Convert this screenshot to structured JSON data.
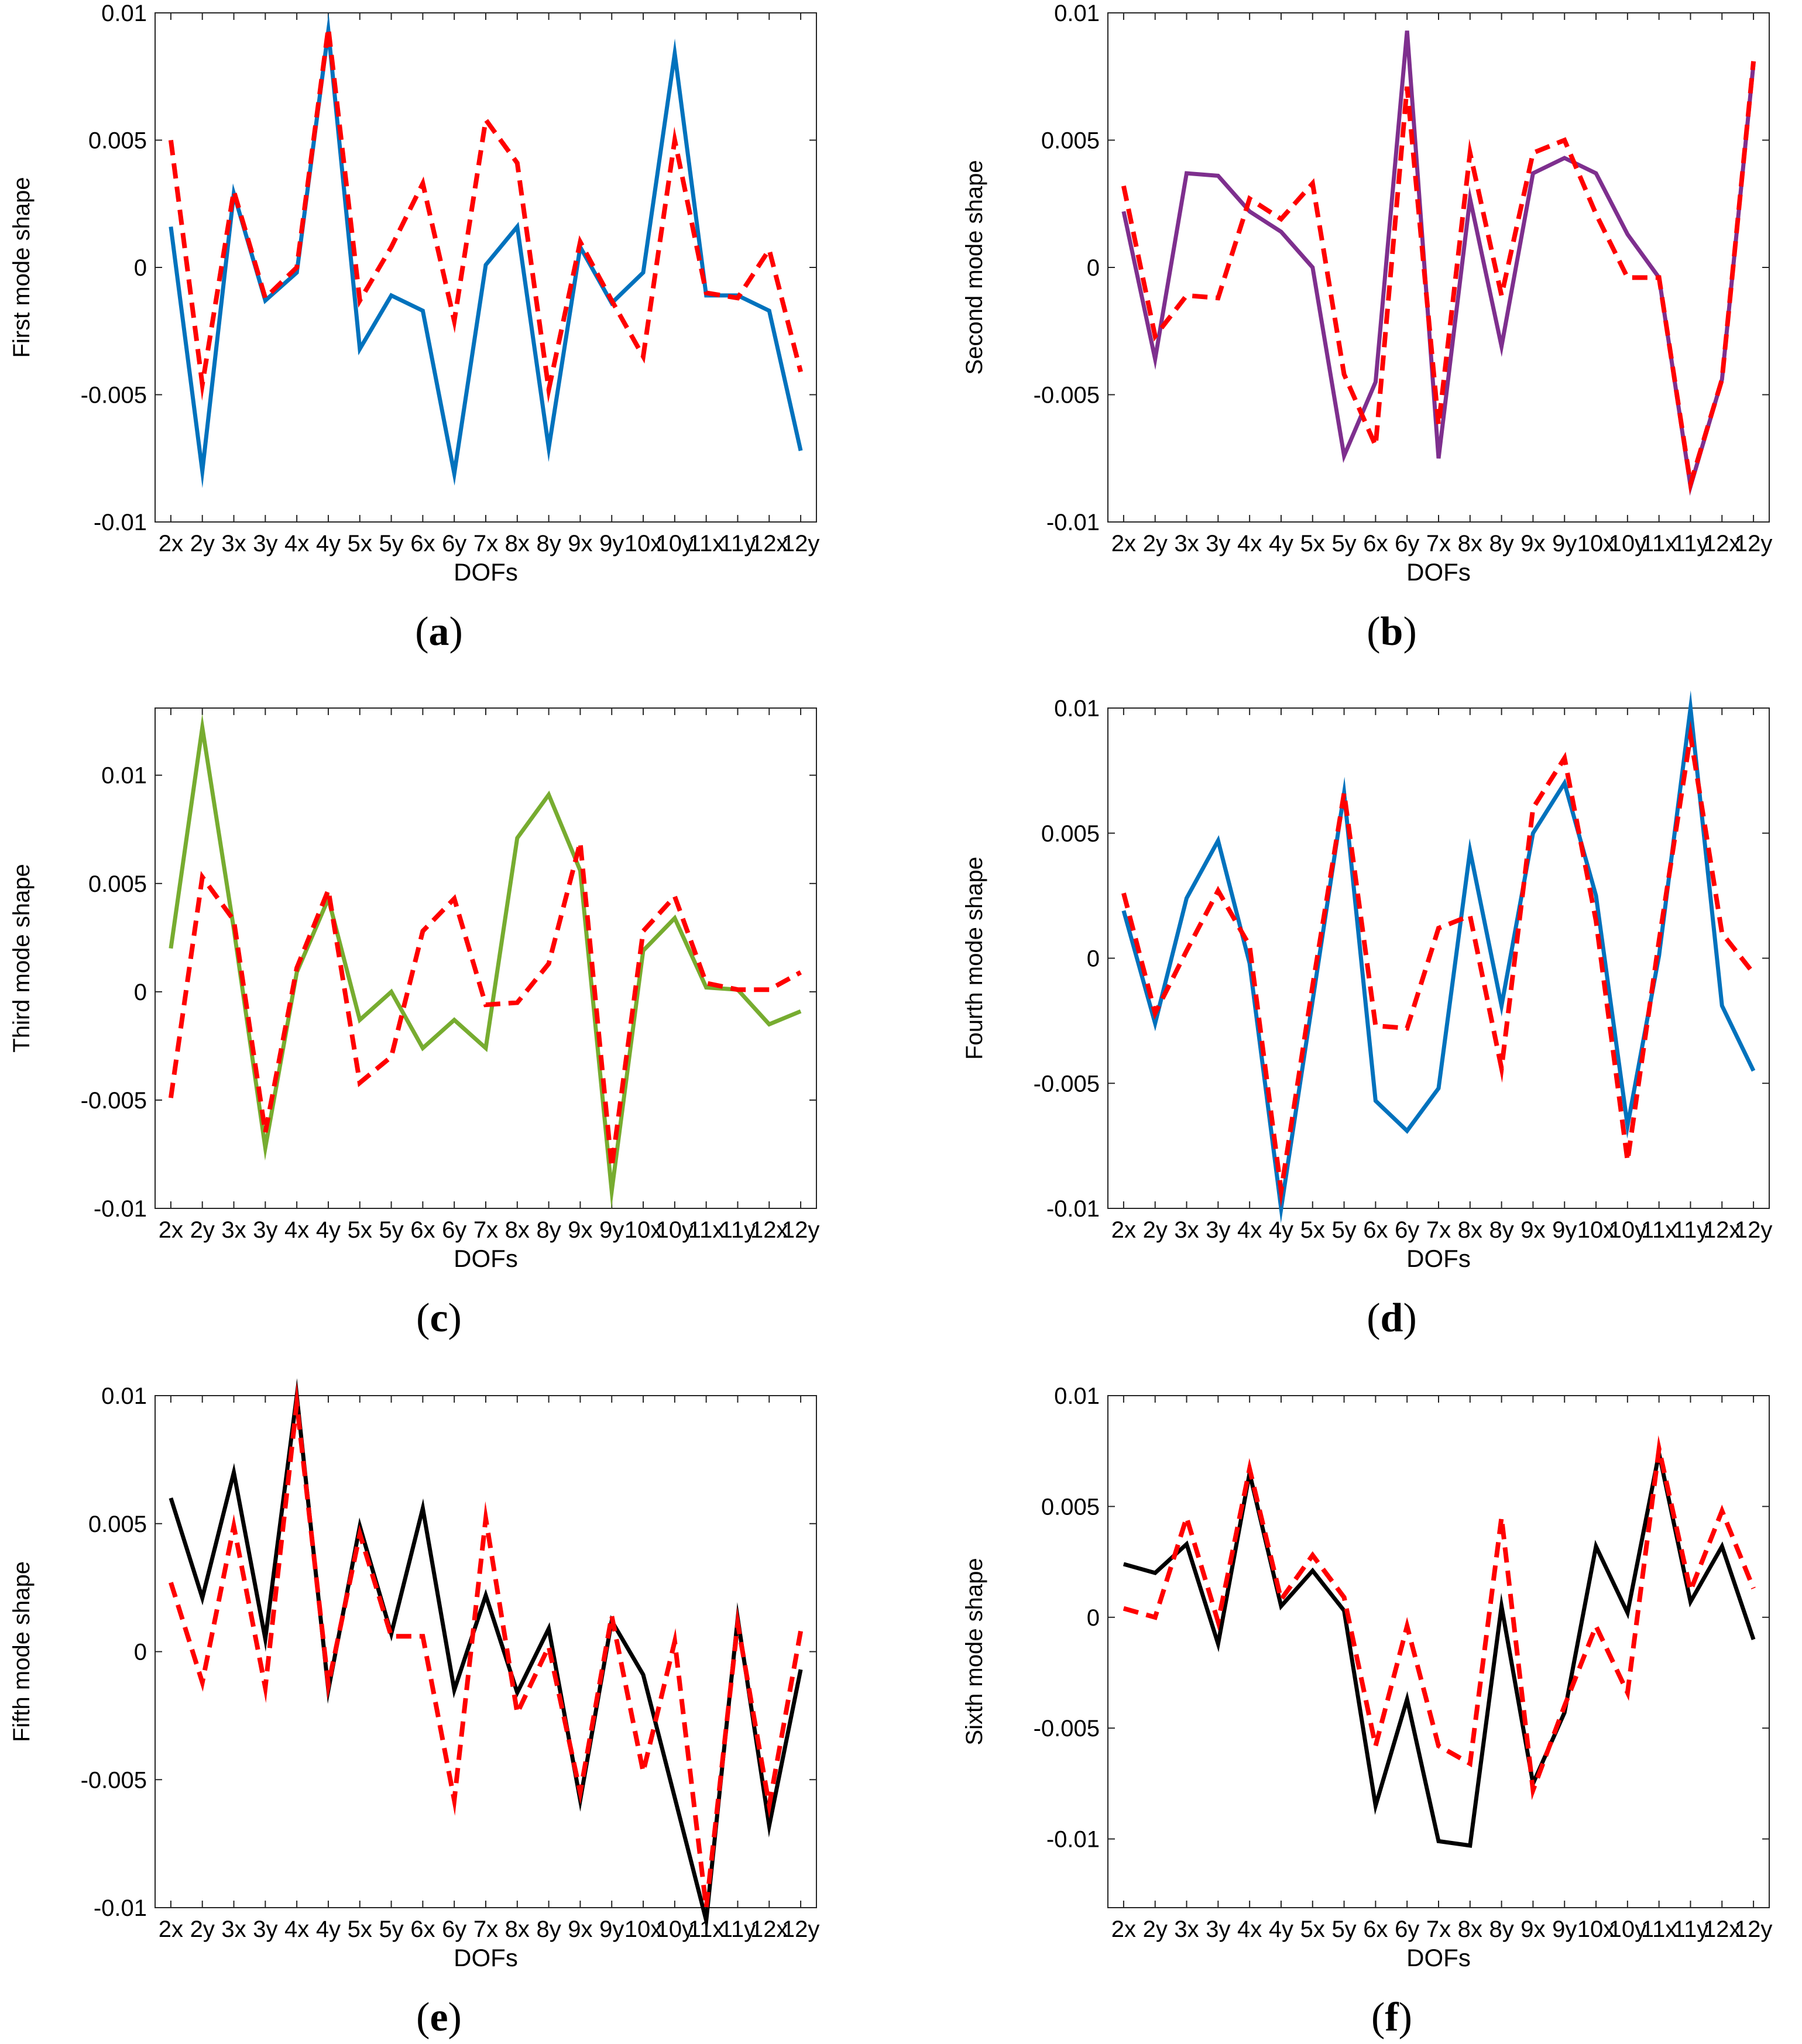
{
  "colors": {
    "prediction": "#ff0000",
    "blue": "#0072bd",
    "purple": "#7e2f8e",
    "green": "#77ac30",
    "black": "#000000"
  },
  "chart_data": [
    {
      "type": "line",
      "caption": "a",
      "ylabel": "First mode shape",
      "xlabel": "DOFs",
      "ylim": [
        -0.01,
        0.01
      ],
      "yticks": [
        -0.01,
        -0.005,
        0,
        0.005,
        0.01
      ],
      "ytick_labels": [
        "-0.01",
        "-0.005",
        "0",
        "0.005",
        "0.01"
      ],
      "categories": [
        "2x",
        "2y",
        "3x",
        "3y",
        "4x",
        "4y",
        "5x",
        "5y",
        "6x",
        "6y",
        "7x",
        "8x",
        "8y",
        "9x",
        "9y",
        "10x",
        "10y",
        "11x",
        "11y",
        "12x",
        "12y"
      ],
      "series": [
        {
          "color": "#0072bd",
          "style": "solid",
          "values": [
            0.0016,
            -0.008,
            0.0029,
            -0.0013,
            -0.0002,
            0.0093,
            -0.0032,
            -0.0011,
            -0.0017,
            -0.0081,
            0.0001,
            0.0016,
            -0.0071,
            0.0008,
            -0.0014,
            -0.0002,
            0.0084,
            -0.0011,
            -0.0011,
            -0.0017,
            -0.0072
          ]
        },
        {
          "color": "#ff0000",
          "style": "dashed",
          "values": [
            0.005,
            -0.0046,
            0.003,
            -0.0012,
            0.0,
            0.0094,
            -0.0013,
            0.0008,
            0.0033,
            -0.0021,
            0.0058,
            0.0041,
            -0.0048,
            0.001,
            -0.0013,
            -0.0035,
            0.005,
            -0.001,
            -0.0012,
            0.0007,
            -0.0041
          ]
        }
      ]
    },
    {
      "type": "line",
      "caption": "b",
      "ylabel": "Second mode shape",
      "xlabel": "DOFs",
      "ylim": [
        -0.01,
        0.01
      ],
      "yticks": [
        -0.01,
        -0.005,
        0,
        0.005,
        0.01
      ],
      "ytick_labels": [
        "-0.01",
        "-0.005",
        "0",
        "0.005",
        "0.01"
      ],
      "categories": [
        "2x",
        "2y",
        "3x",
        "3y",
        "4x",
        "4y",
        "5x",
        "5y",
        "6x",
        "6y",
        "7x",
        "8x",
        "8y",
        "9x",
        "9y",
        "10x",
        "10y",
        "11x",
        "11y",
        "12x",
        "12y"
      ],
      "series": [
        {
          "color": "#7e2f8e",
          "style": "solid",
          "values": [
            0.0022,
            -0.0036,
            0.0037,
            0.0036,
            0.0022,
            0.0014,
            0.0,
            -0.0074,
            -0.0045,
            0.0093,
            -0.0075,
            0.0027,
            -0.0031,
            0.0037,
            0.0043,
            0.0037,
            0.0013,
            -0.0004,
            -0.0086,
            -0.0044,
            0.008
          ]
        },
        {
          "color": "#ff0000",
          "style": "dashed",
          "values": [
            0.0032,
            -0.0027,
            -0.0011,
            -0.0012,
            0.0027,
            0.0019,
            0.0033,
            -0.0042,
            -0.007,
            0.0071,
            -0.0062,
            0.0045,
            -0.0011,
            0.0045,
            0.005,
            0.0021,
            -0.0004,
            -0.0004,
            -0.0085,
            -0.0044,
            0.0081
          ]
        }
      ]
    },
    {
      "type": "line",
      "caption": "c",
      "ylabel": "Third mode shape",
      "xlabel": "DOFs",
      "ylim": [
        -0.01,
        0.0131
      ],
      "yticks": [
        -0.01,
        -0.005,
        0,
        0.005,
        0.01
      ],
      "ytick_labels": [
        "-0.01",
        "-0.005",
        "0",
        "0.005",
        "0.01"
      ],
      "categories": [
        "2x",
        "2y",
        "3x",
        "3y",
        "4x",
        "4y",
        "5x",
        "5y",
        "6x",
        "6y",
        "7x",
        "8x",
        "8y",
        "9x",
        "9y",
        "10x",
        "10y",
        "11x",
        "11y",
        "12x",
        "12y"
      ],
      "series": [
        {
          "color": "#77ac30",
          "style": "solid",
          "values": [
            0.002,
            0.0122,
            0.0029,
            -0.0072,
            0.0009,
            0.0043,
            -0.0013,
            0.0,
            -0.0026,
            -0.0013,
            -0.0026,
            0.0071,
            0.0091,
            0.0056,
            -0.0092,
            0.0019,
            0.0034,
            0.0002,
            0.0001,
            -0.0015,
            -0.0009
          ]
        },
        {
          "color": "#ff0000",
          "style": "dashed",
          "values": [
            -0.0049,
            0.0053,
            0.0033,
            -0.0065,
            0.0011,
            0.0047,
            -0.0042,
            -0.003,
            0.0028,
            0.0043,
            -0.0006,
            -0.0005,
            0.0013,
            0.0069,
            -0.0081,
            0.0028,
            0.0044,
            0.0004,
            0.0001,
            0.0001,
            0.0009
          ]
        }
      ]
    },
    {
      "type": "line",
      "caption": "d",
      "ylabel": "Fourth mode shape",
      "xlabel": "DOFs",
      "ylim": [
        -0.01,
        0.01
      ],
      "yticks": [
        -0.01,
        -0.005,
        0,
        0.005,
        0.01
      ],
      "ytick_labels": [
        "-0.01",
        "-0.005",
        "0",
        "0.005",
        "0.01"
      ],
      "categories": [
        "2x",
        "2y",
        "3x",
        "3y",
        "4x",
        "4y",
        "5x",
        "5y",
        "6x",
        "6y",
        "7x",
        "8x",
        "8y",
        "9x",
        "9y",
        "10x",
        "10y",
        "11x",
        "11y",
        "12x",
        "12y"
      ],
      "series": [
        {
          "color": "#0072bd",
          "style": "solid",
          "values": [
            0.0019,
            -0.0026,
            0.0024,
            0.0047,
            -0.0002,
            -0.01,
            -0.0017,
            0.0066,
            -0.0057,
            -0.0069,
            -0.0052,
            0.0043,
            -0.0019,
            0.005,
            0.007,
            0.0025,
            -0.0067,
            0.0001,
            0.01,
            -0.0019,
            -0.0045
          ]
        },
        {
          "color": "#ff0000",
          "style": "dashed",
          "values": [
            0.0026,
            -0.0022,
            0.0003,
            0.0027,
            0.0005,
            -0.0093,
            -0.0011,
            0.0066,
            -0.0027,
            -0.0028,
            0.0012,
            0.0017,
            -0.0044,
            0.006,
            0.008,
            0.0015,
            -0.0081,
            0.0007,
            0.0089,
            0.001,
            -0.0006
          ]
        }
      ]
    },
    {
      "type": "line",
      "caption": "e",
      "ylabel": "Fifth mode shape",
      "xlabel": "DOFs",
      "ylim": [
        -0.01,
        0.01
      ],
      "yticks": [
        -0.01,
        -0.005,
        0,
        0.005,
        0.01
      ],
      "ytick_labels": [
        "-0.01",
        "-0.005",
        "0",
        "0.005",
        "0.01"
      ],
      "categories": [
        "2x",
        "2y",
        "3x",
        "3y",
        "4x",
        "4y",
        "5x",
        "5y",
        "6x",
        "6y",
        "7x",
        "8x",
        "8y",
        "9x",
        "9y",
        "10x",
        "10y",
        "11x",
        "11y",
        "12x",
        "12y"
      ],
      "series": [
        {
          "color": "#000000",
          "style": "solid",
          "values": [
            0.006,
            0.0021,
            0.007,
            0.0005,
            0.01,
            -0.0015,
            0.0049,
            0.0007,
            0.0056,
            -0.0015,
            0.0022,
            -0.0016,
            0.0009,
            -0.0058,
            0.0012,
            -0.0009,
            -0.0057,
            -0.0105,
            0.0013,
            -0.0068,
            -0.0007
          ]
        },
        {
          "color": "#ff0000",
          "style": "dashed",
          "values": [
            0.0027,
            -0.0012,
            0.0049,
            -0.0014,
            0.0097,
            -0.0013,
            0.0046,
            0.0006,
            0.0006,
            -0.0058,
            0.0052,
            -0.0024,
            0.0002,
            -0.0055,
            0.0014,
            -0.0047,
            0.0004,
            -0.01,
            0.0011,
            -0.006,
            0.0008
          ]
        }
      ]
    },
    {
      "type": "line",
      "caption": "f",
      "ylabel": "Sixth mode shape",
      "xlabel": "DOFs",
      "ylim": [
        -0.0131,
        0.01
      ],
      "yticks": [
        -0.01,
        -0.005,
        0,
        0.005,
        0.01
      ],
      "ytick_labels": [
        "-0.01",
        "-0.005",
        "0",
        "0.005",
        "0.01"
      ],
      "categories": [
        "2x",
        "2y",
        "3x",
        "3y",
        "4x",
        "4y",
        "5x",
        "5y",
        "6x",
        "6y",
        "7x",
        "8x",
        "8y",
        "9x",
        "9y",
        "10x",
        "10y",
        "11x",
        "11y",
        "12x",
        "12y"
      ],
      "series": [
        {
          "color": "#000000",
          "style": "solid",
          "values": [
            0.0024,
            0.002,
            0.0033,
            -0.0012,
            0.0065,
            0.0005,
            0.0021,
            0.0003,
            -0.0085,
            -0.0037,
            -0.0101,
            -0.0103,
            0.0005,
            -0.0075,
            -0.0043,
            0.0032,
            0.0002,
            0.0074,
            0.0007,
            0.0032,
            -0.001
          ]
        },
        {
          "color": "#ff0000",
          "style": "dashed",
          "values": [
            0.0004,
            0.0,
            0.0045,
            -0.0002,
            0.0067,
            0.0008,
            0.0028,
            0.0009,
            -0.0058,
            -0.0004,
            -0.0058,
            -0.0066,
            0.0045,
            -0.0078,
            -0.004,
            -0.0004,
            -0.0034,
            0.0076,
            0.0012,
            0.0048,
            0.0013
          ]
        }
      ]
    }
  ]
}
